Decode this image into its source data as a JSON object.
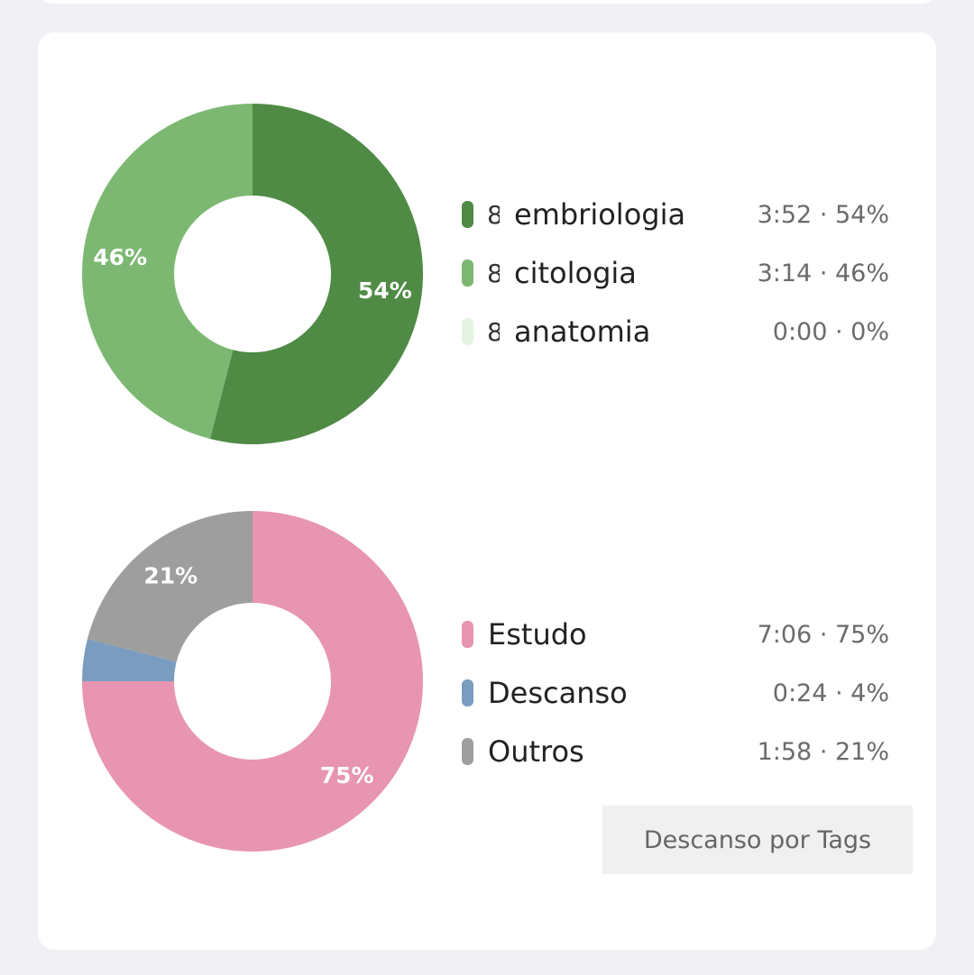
{
  "charts": {
    "subjects": {
      "type": "pie",
      "categories": [
        "embriologia",
        "citologia",
        "anatomia"
      ],
      "values": [
        54,
        46,
        0
      ],
      "times": [
        "3:52",
        "3:14",
        "0:00"
      ],
      "colors": [
        "#4f8b45",
        "#7cb871",
        "#e6f3e4"
      ],
      "glyph": "8"
    },
    "tags": {
      "type": "pie",
      "categories": [
        "Estudo",
        "Descanso",
        "Outros"
      ],
      "values": [
        75,
        4,
        21
      ],
      "times": [
        "7:06",
        "0:24",
        "1:58"
      ],
      "colors": [
        "#e795b0",
        "#7a9cbf",
        "#9e9e9e"
      ]
    }
  },
  "button": {
    "label": "Descanso por Tags"
  }
}
